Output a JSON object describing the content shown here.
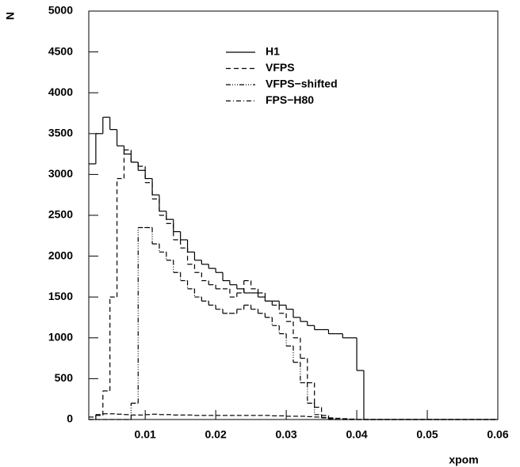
{
  "chart_data": {
    "type": "histogram",
    "x_label": "xpom",
    "y_label": "N",
    "bins": [
      0.002,
      0.003,
      0.004,
      0.005,
      0.006,
      0.007,
      0.008,
      0.009,
      0.01,
      0.011,
      0.012,
      0.013,
      0.014,
      0.015,
      0.016,
      0.017,
      0.018,
      0.019,
      0.02,
      0.021,
      0.022,
      0.023,
      0.024,
      0.025,
      0.026,
      0.027,
      0.028,
      0.029,
      0.03,
      0.031,
      0.032,
      0.033,
      0.034,
      0.035,
      0.036,
      0.037,
      0.038,
      0.039,
      0.04,
      0.041,
      0.042,
      0.043,
      0.044,
      0.045,
      0.046,
      0.047,
      0.048,
      0.049,
      0.05,
      0.051,
      0.052,
      0.053,
      0.054,
      0.055,
      0.056,
      0.057,
      0.058,
      0.059,
      0.06
    ],
    "series": [
      {
        "name": "H1",
        "color": "#000000",
        "dash": "none",
        "values": [
          3130,
          3500,
          3700,
          3550,
          3350,
          3250,
          3150,
          3050,
          2950,
          2750,
          2550,
          2450,
          2300,
          2200,
          2050,
          1950,
          1900,
          1850,
          1800,
          1700,
          1650,
          1600,
          1550,
          1550,
          1500,
          1450,
          1450,
          1400,
          1350,
          1250,
          1200,
          1150,
          1100,
          1100,
          1050,
          1050,
          1000,
          1000,
          600,
          0,
          0,
          0,
          0,
          0,
          0,
          0,
          0,
          0,
          0,
          0,
          0,
          0,
          0,
          0,
          0,
          0,
          0,
          0
        ]
      },
      {
        "name": "VFPS",
        "color": "#000000",
        "dash": "6,4",
        "values": [
          0,
          50,
          350,
          1500,
          2950,
          3300,
          3150,
          3100,
          2900,
          2700,
          2500,
          2400,
          2200,
          2100,
          1900,
          1800,
          1700,
          1650,
          1600,
          1600,
          1500,
          1550,
          1700,
          1600,
          1550,
          1450,
          1400,
          1300,
          1200,
          1000,
          750,
          450,
          150,
          50,
          10,
          0,
          0,
          0,
          0,
          0,
          0,
          0,
          0,
          0,
          0,
          0,
          0,
          0,
          0,
          0,
          0,
          0,
          0,
          0,
          0,
          0,
          0,
          0
        ]
      },
      {
        "name": "VFPS−shifted",
        "color": "#000000",
        "dash": "6,2,1,2,1,2,1,2",
        "values": [
          0,
          0,
          0,
          0,
          0,
          0,
          200,
          2350,
          2350,
          2150,
          2050,
          1950,
          1800,
          1700,
          1600,
          1500,
          1450,
          1400,
          1350,
          1300,
          1300,
          1350,
          1400,
          1350,
          1300,
          1250,
          1150,
          1050,
          900,
          700,
          450,
          200,
          60,
          20,
          0,
          0,
          0,
          0,
          0,
          0,
          0,
          0,
          0,
          0,
          0,
          0,
          0,
          0,
          0,
          0,
          0,
          0,
          0,
          0,
          0,
          0,
          0,
          0
        ]
      },
      {
        "name": "FPS−H80",
        "color": "#000000",
        "dash": "6,3,1,3",
        "values": [
          30,
          60,
          70,
          70,
          65,
          60,
          55,
          55,
          60,
          65,
          60,
          60,
          55,
          55,
          55,
          50,
          50,
          50,
          50,
          50,
          50,
          50,
          50,
          50,
          50,
          50,
          45,
          45,
          40,
          40,
          40,
          35,
          30,
          25,
          20,
          15,
          10,
          5,
          0,
          0,
          0,
          0,
          0,
          0,
          0,
          0,
          0,
          0,
          0,
          0,
          0,
          0,
          0,
          0,
          0,
          0,
          0,
          0
        ]
      }
    ],
    "xlim": [
      0.002,
      0.06
    ],
    "ylim": [
      0,
      5000
    ],
    "xticks": [
      0.01,
      0.02,
      0.03,
      0.04,
      0.05,
      0.06
    ],
    "yticks": [
      0,
      500,
      1000,
      1500,
      2000,
      2500,
      3000,
      3500,
      4000,
      4500,
      5000
    ]
  }
}
